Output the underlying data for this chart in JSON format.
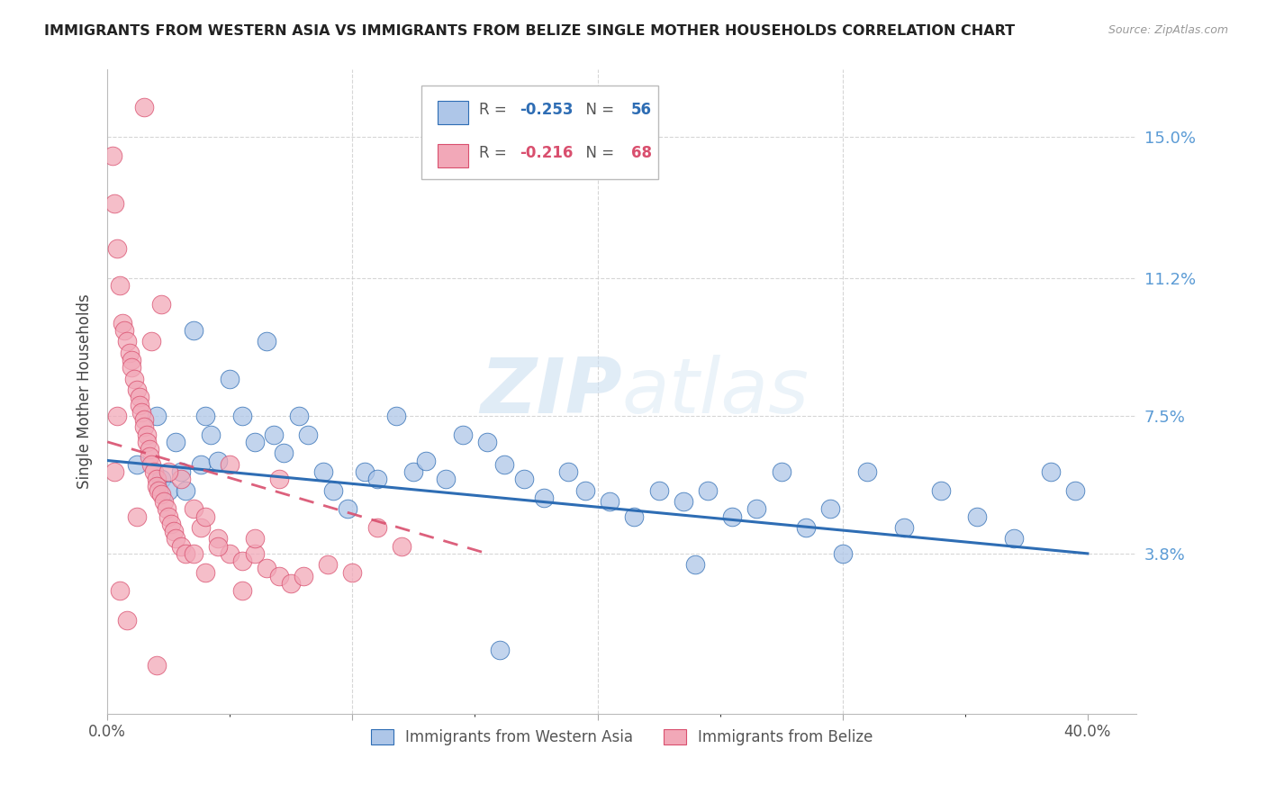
{
  "title": "IMMIGRANTS FROM WESTERN ASIA VS IMMIGRANTS FROM BELIZE SINGLE MOTHER HOUSEHOLDS CORRELATION CHART",
  "source": "Source: ZipAtlas.com",
  "ylabel": "Single Mother Households",
  "ytick_labels": [
    "15.0%",
    "11.2%",
    "7.5%",
    "3.8%"
  ],
  "ytick_values": [
    0.15,
    0.112,
    0.075,
    0.038
  ],
  "xlim": [
    0.0,
    0.42
  ],
  "ylim": [
    -0.005,
    0.168
  ],
  "legend1_r": "-0.253",
  "legend1_n": "56",
  "legend2_r": "-0.216",
  "legend2_n": "68",
  "color_blue": "#aec6e8",
  "color_pink": "#f2a8b8",
  "line_color_blue": "#2e6db4",
  "line_color_pink": "#d94f6e",
  "watermark_zip": "ZIP",
  "watermark_atlas": "atlas",
  "blue_x": [
    0.012,
    0.02,
    0.022,
    0.025,
    0.028,
    0.03,
    0.032,
    0.035,
    0.038,
    0.04,
    0.042,
    0.045,
    0.05,
    0.055,
    0.06,
    0.065,
    0.068,
    0.072,
    0.078,
    0.082,
    0.088,
    0.092,
    0.098,
    0.105,
    0.11,
    0.118,
    0.125,
    0.13,
    0.138,
    0.145,
    0.155,
    0.162,
    0.17,
    0.178,
    0.188,
    0.195,
    0.205,
    0.215,
    0.225,
    0.235,
    0.245,
    0.255,
    0.265,
    0.275,
    0.285,
    0.295,
    0.31,
    0.325,
    0.34,
    0.355,
    0.37,
    0.385,
    0.395,
    0.16,
    0.24,
    0.3
  ],
  "blue_y": [
    0.062,
    0.075,
    0.058,
    0.055,
    0.068,
    0.06,
    0.055,
    0.098,
    0.062,
    0.075,
    0.07,
    0.063,
    0.085,
    0.075,
    0.068,
    0.095,
    0.07,
    0.065,
    0.075,
    0.07,
    0.06,
    0.055,
    0.05,
    0.06,
    0.058,
    0.075,
    0.06,
    0.063,
    0.058,
    0.07,
    0.068,
    0.062,
    0.058,
    0.053,
    0.06,
    0.055,
    0.052,
    0.048,
    0.055,
    0.052,
    0.055,
    0.048,
    0.05,
    0.06,
    0.045,
    0.05,
    0.06,
    0.045,
    0.055,
    0.048,
    0.042,
    0.06,
    0.055,
    0.012,
    0.035,
    0.038
  ],
  "pink_x": [
    0.002,
    0.003,
    0.004,
    0.005,
    0.006,
    0.007,
    0.008,
    0.009,
    0.01,
    0.01,
    0.011,
    0.012,
    0.013,
    0.013,
    0.014,
    0.015,
    0.015,
    0.016,
    0.016,
    0.017,
    0.017,
    0.018,
    0.019,
    0.02,
    0.02,
    0.021,
    0.022,
    0.023,
    0.024,
    0.025,
    0.026,
    0.027,
    0.028,
    0.03,
    0.032,
    0.035,
    0.038,
    0.04,
    0.045,
    0.05,
    0.055,
    0.06,
    0.065,
    0.07,
    0.075,
    0.08,
    0.09,
    0.1,
    0.11,
    0.12,
    0.015,
    0.022,
    0.003,
    0.004,
    0.05,
    0.03,
    0.06,
    0.02,
    0.008,
    0.07,
    0.04,
    0.025,
    0.035,
    0.012,
    0.055,
    0.005,
    0.045,
    0.018
  ],
  "pink_y": [
    0.145,
    0.132,
    0.12,
    0.11,
    0.1,
    0.098,
    0.095,
    0.092,
    0.09,
    0.088,
    0.085,
    0.082,
    0.08,
    0.078,
    0.076,
    0.074,
    0.072,
    0.07,
    0.068,
    0.066,
    0.064,
    0.062,
    0.06,
    0.058,
    0.056,
    0.055,
    0.054,
    0.052,
    0.05,
    0.048,
    0.046,
    0.044,
    0.042,
    0.04,
    0.038,
    0.05,
    0.045,
    0.048,
    0.042,
    0.038,
    0.036,
    0.038,
    0.034,
    0.032,
    0.03,
    0.032,
    0.035,
    0.033,
    0.045,
    0.04,
    0.158,
    0.105,
    0.06,
    0.075,
    0.062,
    0.058,
    0.042,
    0.008,
    0.02,
    0.058,
    0.033,
    0.06,
    0.038,
    0.048,
    0.028,
    0.028,
    0.04,
    0.095
  ],
  "blue_trendline_x": [
    0.0,
    0.4
  ],
  "blue_trendline_y": [
    0.063,
    0.038
  ],
  "pink_trendline_x": [
    0.0,
    0.155
  ],
  "pink_trendline_y": [
    0.068,
    0.038
  ]
}
